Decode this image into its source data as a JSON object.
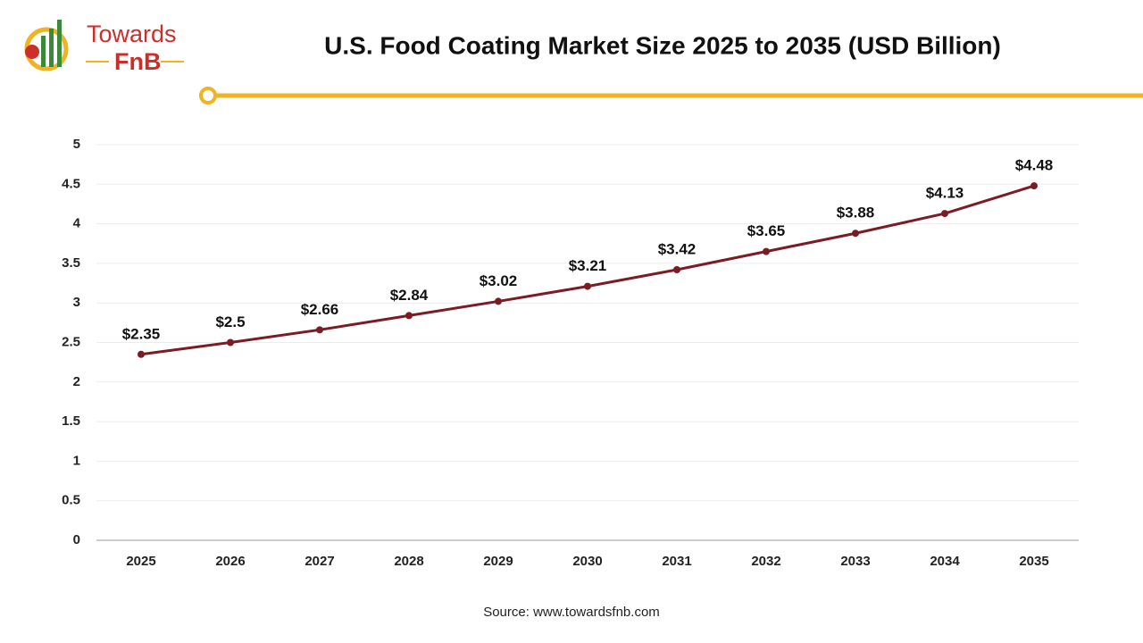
{
  "logo": {
    "line1": "Towards",
    "line2": "FnB"
  },
  "chart_data": {
    "type": "line",
    "title": "U.S. Food Coating Market Size 2025 to 2035 (USD Billion)",
    "categories": [
      "2025",
      "2026",
      "2027",
      "2028",
      "2029",
      "2030",
      "2031",
      "2032",
      "2033",
      "2034",
      "2035"
    ],
    "series": [
      {
        "name": "U.S. Food Coating Market Size",
        "color": "#7b1c24",
        "values": [
          2.35,
          2.5,
          2.66,
          2.84,
          3.02,
          3.21,
          3.42,
          3.65,
          3.88,
          4.13,
          4.48
        ],
        "value_labels": [
          "$2.35",
          "$2.5",
          "$2.66",
          "$2.84",
          "$3.02",
          "$3.21",
          "$3.42",
          "$3.65",
          "$3.88",
          "$4.13",
          "$4.48"
        ]
      }
    ],
    "ylim": [
      0,
      5
    ],
    "yticks": [
      0,
      0.5,
      1,
      1.5,
      2,
      2.5,
      3,
      3.5,
      4,
      4.5,
      5
    ],
    "grid": true,
    "source": "Source: www.towardsfnb.com"
  }
}
